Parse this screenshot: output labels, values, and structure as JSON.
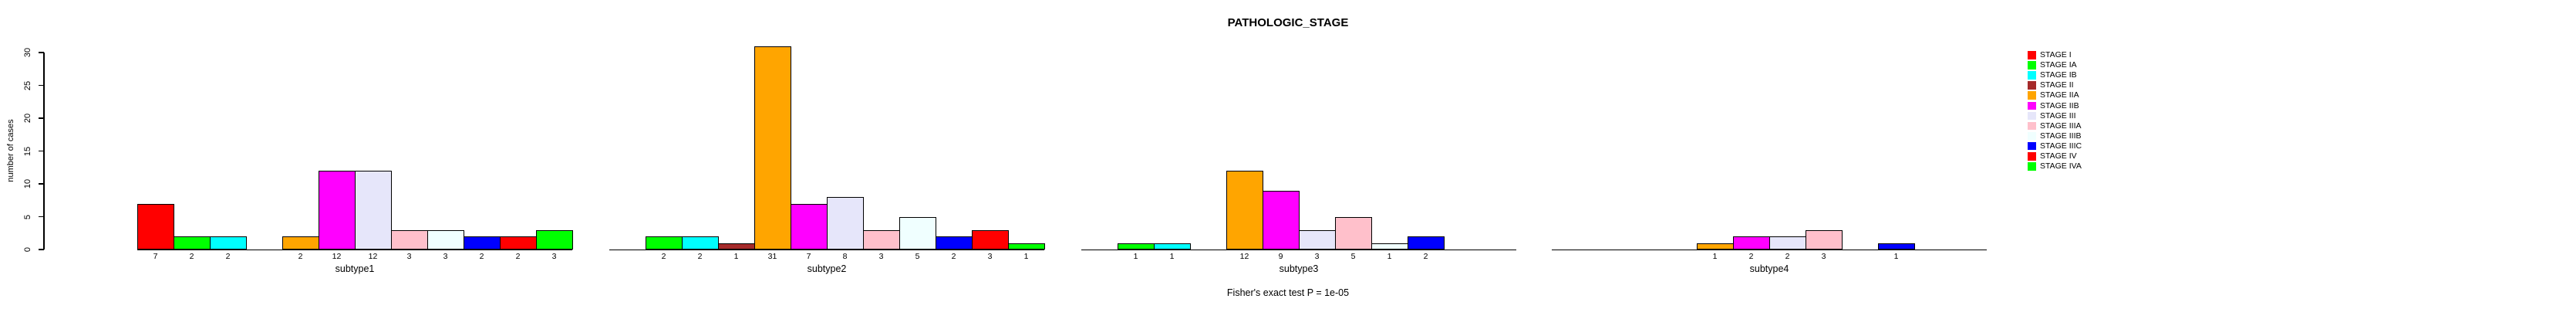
{
  "title": "PATHOLOGIC_STAGE",
  "caption": "Fisher's exact test P = 1e-05",
  "y_axis": {
    "label": "number of cases",
    "ticks": [
      0,
      5,
      10,
      15,
      20,
      25,
      30
    ]
  },
  "chart_data": {
    "type": "bar",
    "title": "PATHOLOGIC_STAGE",
    "xlabel": "",
    "ylabel": "number of cases",
    "ylim": [
      0,
      30
    ],
    "yticks": [
      0,
      5,
      10,
      15,
      20,
      25,
      30
    ],
    "grid": false,
    "legend_position": "right",
    "annotation": "Fisher's exact test P = 1e-05",
    "categories": [
      "STAGE I",
      "STAGE IA",
      "STAGE IB",
      "STAGE II",
      "STAGE IIA",
      "STAGE IIB",
      "STAGE III",
      "STAGE IIIA",
      "STAGE IIIB",
      "STAGE IIIC",
      "STAGE IV",
      "STAGE IVA"
    ],
    "colors": [
      "#FF0000",
      "#00FF00",
      "#00FFFF",
      "#A52A2A",
      "#FFA500",
      "#FF00FF",
      "#E6E6FA",
      "#FFC0CB",
      "#F0FFFF",
      "#0000FF",
      "#FF0000",
      "#00FF00"
    ],
    "groups": [
      {
        "label": "subtype1",
        "values": [
          7,
          2,
          2,
          0,
          2,
          12,
          12,
          3,
          3,
          2,
          2,
          3
        ]
      },
      {
        "label": "subtype2",
        "values": [
          0,
          2,
          2,
          1,
          31,
          7,
          8,
          3,
          5,
          2,
          3,
          1
        ]
      },
      {
        "label": "subtype3",
        "values": [
          0,
          1,
          1,
          0,
          12,
          9,
          3,
          5,
          1,
          2,
          0,
          0
        ]
      },
      {
        "label": "subtype4",
        "values": [
          0,
          0,
          0,
          0,
          1,
          2,
          2,
          3,
          0,
          1,
          0,
          0
        ]
      }
    ]
  }
}
